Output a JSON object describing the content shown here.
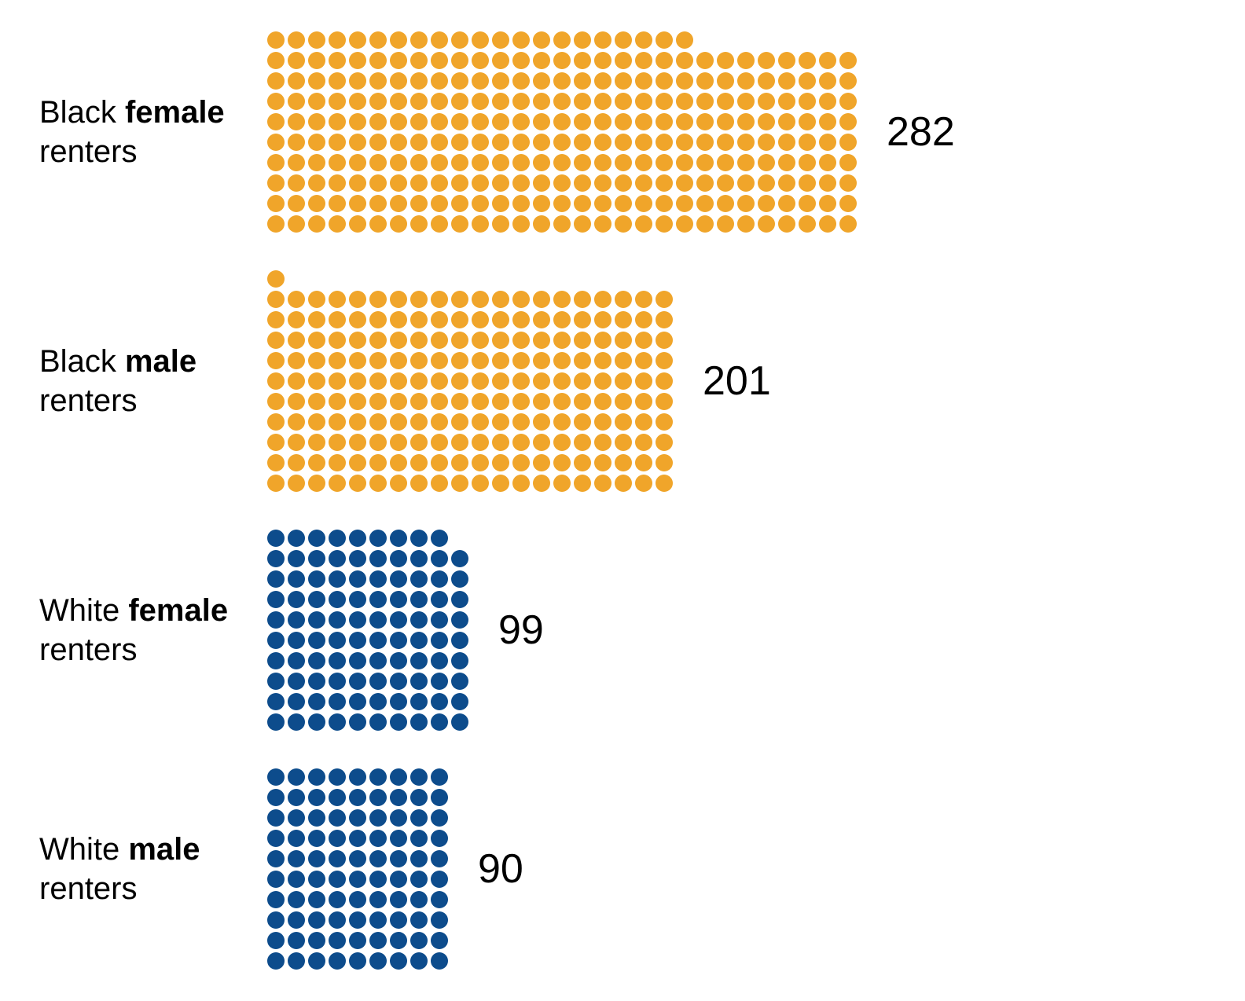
{
  "chart": {
    "type": "dot-matrix",
    "background_color": "#ffffff",
    "text_color": "#000000",
    "label_fontsize": 40,
    "value_fontsize": 52,
    "dot_diameter": 22,
    "dot_gap": 4,
    "row_gap": 48,
    "label_width": 290,
    "value_margin_left": 38,
    "groups": [
      {
        "label_prefix": "Black ",
        "label_bold": "female",
        "label_suffix": " renters",
        "value": 282,
        "color": "#f0a52a",
        "dots_per_row": 29
      },
      {
        "label_prefix": "Black ",
        "label_bold": "male",
        "label_suffix": " renters",
        "value": 201,
        "color": "#f0a52a",
        "dots_per_row": 20
      },
      {
        "label_prefix": "White ",
        "label_bold": "female",
        "label_suffix": " renters",
        "value": 99,
        "color": "#0d4c8c",
        "dots_per_row": 10
      },
      {
        "label_prefix": "White ",
        "label_bold": "male",
        "label_suffix": " renters",
        "value": 90,
        "color": "#0d4c8c",
        "dots_per_row": 9
      }
    ]
  }
}
